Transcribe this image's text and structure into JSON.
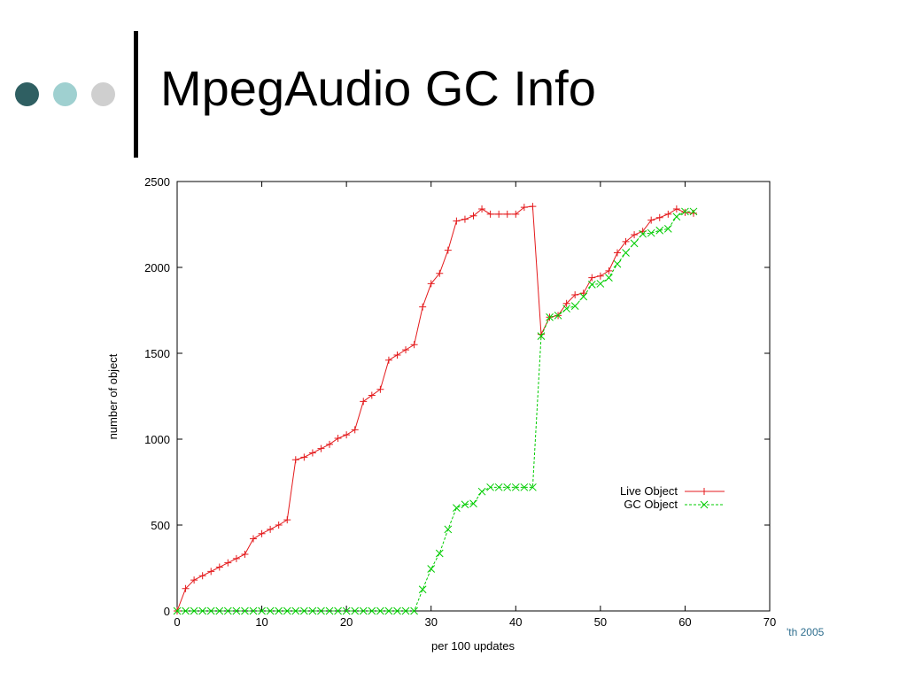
{
  "slide": {
    "title": "MpegAudio GC Info",
    "footer_fragment": "'th 2005",
    "decor_dot_colors": [
      "#2f5f62",
      "#9fd0d0",
      "#cfcfcf"
    ]
  },
  "chart_data": {
    "type": "line",
    "title": "",
    "xlabel": "per 100 updates",
    "ylabel": "number of object",
    "xlim": [
      0,
      70
    ],
    "ylim": [
      0,
      2500
    ],
    "xticks": [
      0,
      10,
      20,
      30,
      40,
      50,
      60,
      70
    ],
    "yticks": [
      0,
      500,
      1000,
      1500,
      2000,
      2500
    ],
    "grid": false,
    "legend_position": "right, lower-middle",
    "series": [
      {
        "name": "Live Object",
        "color": "#e41a1c",
        "marker": "plus",
        "x": [
          0,
          1,
          2,
          3,
          4,
          5,
          6,
          7,
          8,
          9,
          10,
          11,
          12,
          13,
          14,
          15,
          16,
          17,
          18,
          19,
          20,
          21,
          22,
          23,
          24,
          25,
          26,
          27,
          28,
          29,
          30,
          31,
          32,
          33,
          34,
          35,
          36,
          37,
          38,
          39,
          40,
          41,
          42,
          43,
          44,
          45,
          46,
          47,
          48,
          49,
          50,
          51,
          52,
          53,
          54,
          55,
          56,
          57,
          58,
          59,
          60,
          61
        ],
        "y": [
          0,
          130,
          180,
          205,
          230,
          255,
          280,
          305,
          330,
          420,
          450,
          475,
          500,
          530,
          880,
          895,
          920,
          945,
          970,
          1005,
          1025,
          1055,
          1220,
          1255,
          1290,
          1460,
          1490,
          1520,
          1550,
          1770,
          1905,
          1965,
          2100,
          2270,
          2280,
          2300,
          2340,
          2310,
          2310,
          2310,
          2310,
          2350,
          2355,
          1610,
          1710,
          1720,
          1790,
          1840,
          1850,
          1940,
          1950,
          1980,
          2085,
          2150,
          2190,
          2210,
          2275,
          2290,
          2310,
          2340,
          2320,
          2315
        ]
      },
      {
        "name": "GC Object",
        "color": "#00cc00",
        "marker": "cross",
        "x": [
          0,
          1,
          2,
          3,
          4,
          5,
          6,
          7,
          8,
          9,
          10,
          11,
          12,
          13,
          14,
          15,
          16,
          17,
          18,
          19,
          20,
          21,
          22,
          23,
          24,
          25,
          26,
          27,
          28,
          29,
          30,
          31,
          32,
          33,
          34,
          35,
          36,
          37,
          38,
          39,
          40,
          41,
          42,
          43,
          44,
          45,
          46,
          47,
          48,
          49,
          50,
          51,
          52,
          53,
          54,
          55,
          56,
          57,
          58,
          59,
          60,
          61
        ],
        "y": [
          0,
          0,
          0,
          0,
          0,
          0,
          0,
          0,
          0,
          0,
          0,
          0,
          0,
          0,
          0,
          0,
          0,
          0,
          0,
          0,
          0,
          0,
          0,
          0,
          0,
          0,
          0,
          0,
          0,
          125,
          245,
          335,
          475,
          600,
          620,
          625,
          695,
          720,
          720,
          720,
          720,
          720,
          720,
          1600,
          1710,
          1720,
          1760,
          1775,
          1830,
          1900,
          1905,
          1940,
          2020,
          2085,
          2140,
          2195,
          2200,
          2215,
          2225,
          2295,
          2325,
          2325
        ]
      }
    ]
  }
}
